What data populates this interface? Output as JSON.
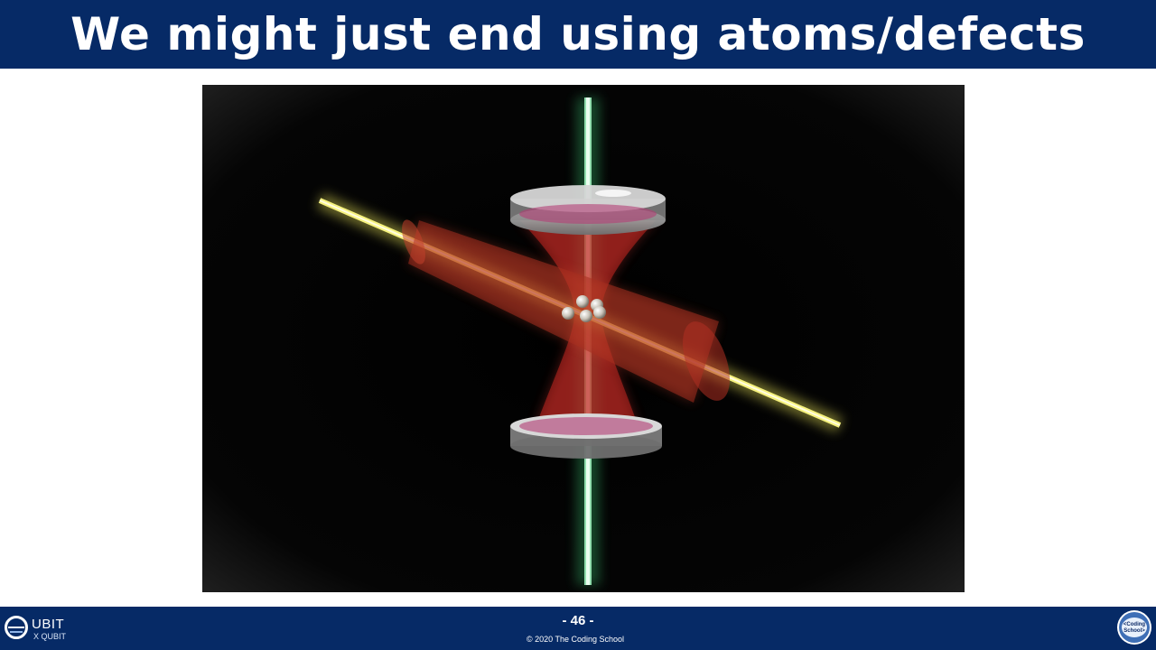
{
  "slide": {
    "title": "We might just end using atoms/defects"
  },
  "footer": {
    "page_number": "- 46 -",
    "copyright": "© 2020 The Coding School",
    "logo_left_top": "UBIT",
    "logo_left_bottom": "X QUBIT",
    "logo_right_text": "<Coding School>"
  },
  "colors": {
    "header_bg": "#062a66",
    "footer_bg": "#062a66",
    "beam_green": "#7de8a6",
    "beam_yellow": "#f4f07a",
    "beam_red": "#c0302a"
  }
}
